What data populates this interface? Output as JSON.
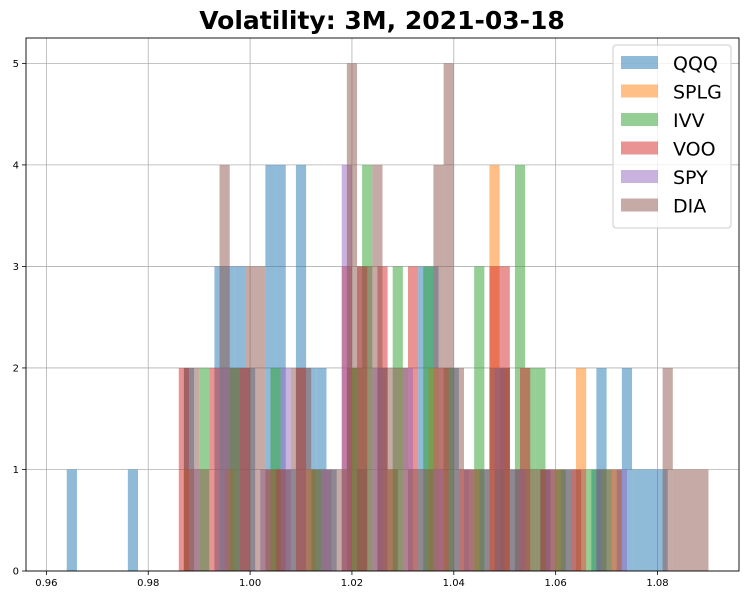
{
  "chart_data": {
    "type": "bar",
    "subtype": "overlapping-histogram",
    "title": "Volatility: 3M, 2021-03-18",
    "xlabel": "",
    "ylabel": "",
    "xlim": [
      0.956,
      1.096
    ],
    "ylim": [
      0,
      5.25
    ],
    "xticks": [
      0.96,
      0.98,
      1.0,
      1.02,
      1.04,
      1.06,
      1.08
    ],
    "xtick_labels": [
      "0.96",
      "0.98",
      "1.00",
      "1.02",
      "1.04",
      "1.06",
      "1.08"
    ],
    "yticks": [
      0,
      1,
      2,
      3,
      4,
      5
    ],
    "ytick_labels": [
      "0",
      "1",
      "2",
      "3",
      "4",
      "5"
    ],
    "grid": true,
    "legend_position": "top-right",
    "alpha": 0.5,
    "series": [
      {
        "name": "QQQ",
        "color": "#1f77b4",
        "bins": [
          [
            0.964,
            0.966,
            1
          ],
          [
            0.976,
            0.978,
            1
          ],
          [
            0.987,
            0.989,
            2
          ],
          [
            0.993,
            0.995,
            3
          ],
          [
            0.995,
            0.997,
            3
          ],
          [
            0.997,
            0.999,
            3
          ],
          [
            0.999,
            1.001,
            2
          ],
          [
            1.003,
            1.005,
            4
          ],
          [
            1.005,
            1.007,
            4
          ],
          [
            1.007,
            1.009,
            1
          ],
          [
            1.009,
            1.011,
            4
          ],
          [
            1.011,
            1.013,
            2
          ],
          [
            1.013,
            1.015,
            2
          ],
          [
            1.015,
            1.017,
            1
          ],
          [
            1.019,
            1.021,
            2
          ],
          [
            1.021,
            1.023,
            1
          ],
          [
            1.025,
            1.027,
            2
          ],
          [
            1.027,
            1.029,
            1
          ],
          [
            1.033,
            1.035,
            3
          ],
          [
            1.035,
            1.037,
            3
          ],
          [
            1.039,
            1.041,
            2
          ],
          [
            1.045,
            1.047,
            1
          ],
          [
            1.049,
            1.051,
            2
          ],
          [
            1.051,
            1.053,
            1
          ],
          [
            1.057,
            1.059,
            1
          ],
          [
            1.061,
            1.063,
            1
          ],
          [
            1.067,
            1.069,
            1
          ],
          [
            1.068,
            1.07,
            2
          ],
          [
            1.073,
            1.075,
            2
          ],
          [
            1.075,
            1.082,
            1
          ]
        ]
      },
      {
        "name": "SPLG",
        "color": "#ff7f0e",
        "bins": [
          [
            0.987,
            0.989,
            1
          ],
          [
            0.995,
            0.997,
            1
          ],
          [
            1.003,
            1.005,
            1
          ],
          [
            1.011,
            1.013,
            1
          ],
          [
            1.019,
            1.021,
            2
          ],
          [
            1.027,
            1.029,
            1
          ],
          [
            1.035,
            1.037,
            2
          ],
          [
            1.043,
            1.045,
            1
          ],
          [
            1.047,
            1.049,
            4
          ],
          [
            1.049,
            1.051,
            2
          ],
          [
            1.059,
            1.061,
            1
          ],
          [
            1.064,
            1.066,
            2
          ],
          [
            1.071,
            1.073,
            1
          ]
        ]
      },
      {
        "name": "IVV",
        "color": "#2ca02c",
        "bins": [
          [
            0.99,
            0.992,
            2
          ],
          [
            0.996,
            0.998,
            2
          ],
          [
            1.004,
            1.006,
            2
          ],
          [
            1.012,
            1.014,
            1
          ],
          [
            1.02,
            1.022,
            2
          ],
          [
            1.022,
            1.024,
            4
          ],
          [
            1.028,
            1.03,
            3
          ],
          [
            1.034,
            1.036,
            3
          ],
          [
            1.038,
            1.04,
            2
          ],
          [
            1.044,
            1.046,
            3
          ],
          [
            1.048,
            1.05,
            1
          ],
          [
            1.052,
            1.054,
            4
          ],
          [
            1.054,
            1.056,
            2
          ],
          [
            1.056,
            1.058,
            2
          ],
          [
            1.06,
            1.062,
            1
          ],
          [
            1.066,
            1.068,
            1
          ],
          [
            1.069,
            1.071,
            1
          ]
        ]
      },
      {
        "name": "VOO",
        "color": "#d62728",
        "bins": [
          [
            0.986,
            0.988,
            2
          ],
          [
            0.992,
            0.994,
            2
          ],
          [
            0.998,
            1.0,
            2
          ],
          [
            1.005,
            1.007,
            1
          ],
          [
            1.009,
            1.011,
            2
          ],
          [
            1.018,
            1.02,
            3
          ],
          [
            1.021,
            1.023,
            3
          ],
          [
            1.025,
            1.027,
            3
          ],
          [
            1.031,
            1.033,
            3
          ],
          [
            1.037,
            1.039,
            2
          ],
          [
            1.041,
            1.043,
            1
          ],
          [
            1.047,
            1.049,
            3
          ],
          [
            1.049,
            1.051,
            3
          ],
          [
            1.053,
            1.055,
            2
          ],
          [
            1.057,
            1.059,
            1
          ],
          [
            1.063,
            1.065,
            1
          ]
        ]
      },
      {
        "name": "SPY",
        "color": "#9467bd",
        "bins": [
          [
            0.988,
            0.99,
            1
          ],
          [
            0.994,
            0.996,
            2
          ],
          [
            1.002,
            1.004,
            1
          ],
          [
            1.006,
            1.008,
            2
          ],
          [
            1.014,
            1.016,
            1
          ],
          [
            1.018,
            1.02,
            4
          ],
          [
            1.024,
            1.026,
            2
          ],
          [
            1.03,
            1.032,
            2
          ],
          [
            1.036,
            1.038,
            1
          ],
          [
            1.042,
            1.044,
            1
          ],
          [
            1.048,
            1.05,
            2
          ],
          [
            1.052,
            1.054,
            1
          ],
          [
            1.058,
            1.06,
            1
          ],
          [
            1.072,
            1.074,
            1
          ]
        ]
      },
      {
        "name": "DIA",
        "color": "#8c564b",
        "bins": [
          [
            0.987,
            0.99,
            2
          ],
          [
            0.99,
            0.992,
            1
          ],
          [
            0.994,
            0.996,
            4
          ],
          [
            0.996,
            0.999,
            2
          ],
          [
            0.999,
            1.003,
            3
          ],
          [
            1.003,
            1.008,
            1
          ],
          [
            1.008,
            1.012,
            2
          ],
          [
            1.012,
            1.019,
            1
          ],
          [
            1.019,
            1.021,
            5
          ],
          [
            1.021,
            1.024,
            3
          ],
          [
            1.024,
            1.026,
            4
          ],
          [
            1.026,
            1.031,
            2
          ],
          [
            1.031,
            1.036,
            1
          ],
          [
            1.036,
            1.038,
            4
          ],
          [
            1.038,
            1.04,
            5
          ],
          [
            1.04,
            1.042,
            2
          ],
          [
            1.042,
            1.047,
            1
          ],
          [
            1.047,
            1.051,
            2
          ],
          [
            1.051,
            1.066,
            1
          ],
          [
            1.068,
            1.073,
            1
          ],
          [
            1.081,
            1.083,
            2
          ],
          [
            1.083,
            1.09,
            1
          ]
        ]
      }
    ]
  }
}
